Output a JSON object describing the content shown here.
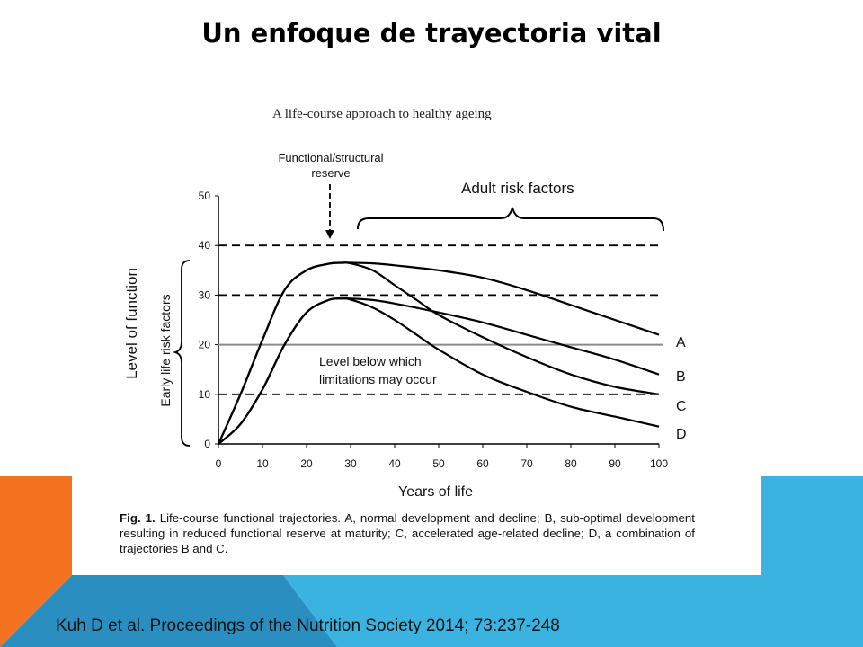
{
  "slide": {
    "title": "Un enfoque de trayectoria vital",
    "citation": "Kuh D et al. Proceedings of the Nutrition Society 2014; 73:237-248",
    "colors": {
      "orange": "#f4711f",
      "blue": "#3bb3e0",
      "dark_blue": "#2a8fc0",
      "title": "#000000"
    }
  },
  "figure": {
    "caption_label": "Fig. 1.",
    "caption_text": "Life-course functional trajectories. A, normal development and decline; B, sub-optimal development resulting in reduced functional reserve at maturity; C, accelerated age-related decline; D, a combination of trajectories B and C."
  },
  "chart_data": {
    "type": "line",
    "title": "A life-course approach to healthy ageing",
    "xlabel": "Years of life",
    "ylabel": "Level of function",
    "xlim": [
      0,
      100
    ],
    "ylim": [
      0,
      50
    ],
    "xticks": [
      0,
      10,
      20,
      30,
      40,
      50,
      60,
      70,
      80,
      90,
      100
    ],
    "yticks": [
      0,
      10,
      20,
      30,
      40,
      50
    ],
    "grid": false,
    "reference_lines": [
      {
        "y": 40,
        "style": "dashed"
      },
      {
        "y": 30,
        "style": "dashed"
      },
      {
        "y": 10,
        "style": "dashed"
      },
      {
        "y": 20,
        "style": "solid-gray"
      }
    ],
    "annotations": {
      "reserve": "Functional/structural reserve",
      "adult_risk": "Adult risk factors",
      "early_risk": "Early life risk factors",
      "limitation": "Level below which limitations may occur"
    },
    "series": [
      {
        "name": "A",
        "x": [
          0,
          5,
          10,
          15,
          20,
          25,
          28,
          30,
          35,
          40,
          50,
          60,
          70,
          80,
          90,
          100
        ],
        "y": [
          0,
          10,
          21,
          31,
          35,
          36.3,
          36.5,
          36.5,
          36.4,
          36,
          35,
          33.5,
          31,
          28,
          25,
          22
        ]
      },
      {
        "name": "B",
        "x": [
          0,
          5,
          10,
          15,
          20,
          25,
          28,
          30,
          35,
          40,
          50,
          60,
          70,
          80,
          90,
          100
        ],
        "y": [
          0,
          4,
          11,
          20,
          26.5,
          29,
          29.3,
          29.3,
          29,
          28.3,
          26.5,
          24.5,
          22,
          19.5,
          17,
          14
        ]
      },
      {
        "name": "C",
        "x": [
          0,
          5,
          10,
          15,
          20,
          25,
          28,
          30,
          35,
          40,
          45,
          50,
          60,
          70,
          80,
          90,
          100
        ],
        "y": [
          0,
          10,
          21,
          31,
          35,
          36.3,
          36.5,
          36.4,
          35,
          32,
          29,
          26,
          21.5,
          17.5,
          14,
          11.5,
          10
        ]
      },
      {
        "name": "D",
        "x": [
          0,
          5,
          10,
          15,
          20,
          25,
          28,
          30,
          35,
          40,
          45,
          50,
          60,
          70,
          80,
          90,
          100
        ],
        "y": [
          0,
          4,
          11,
          20,
          26.5,
          29,
          29.3,
          29.1,
          27.5,
          25,
          22,
          19,
          14,
          10.5,
          7.5,
          5.5,
          3.5
        ]
      }
    ]
  }
}
